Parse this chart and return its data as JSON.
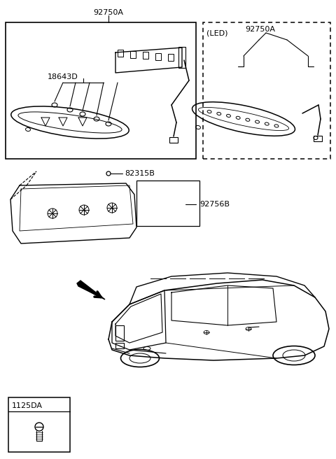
{
  "bg_color": "#ffffff",
  "labels": {
    "92750A_top": "92750A",
    "18643D": "18643D",
    "led_label": "(LED)",
    "92750A_right": "92750A",
    "82315B": "82315B",
    "92756B": "92756B",
    "1125DA": "1125DA"
  },
  "figsize": [
    4.8,
    6.56
  ],
  "dpi": 100
}
